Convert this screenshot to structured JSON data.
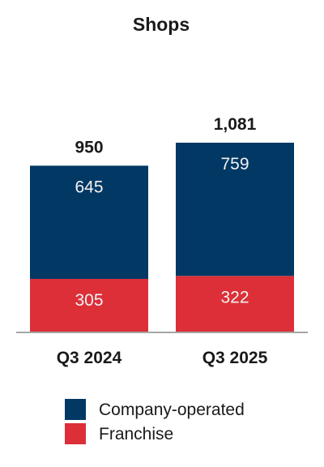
{
  "chart_data": {
    "type": "bar",
    "stacked": true,
    "title": "Shops",
    "categories": [
      "Q3 2024",
      "Q3 2025"
    ],
    "series": [
      {
        "name": "Franchise",
        "values": [
          305,
          322
        ],
        "color": "#dc2f38"
      },
      {
        "name": "Company-operated",
        "values": [
          645,
          759
        ],
        "color": "#013864"
      }
    ],
    "totals": [
      "950",
      "1,081"
    ],
    "ylim": [
      0,
      1081
    ],
    "legend_position": "bottom",
    "grid": false
  }
}
